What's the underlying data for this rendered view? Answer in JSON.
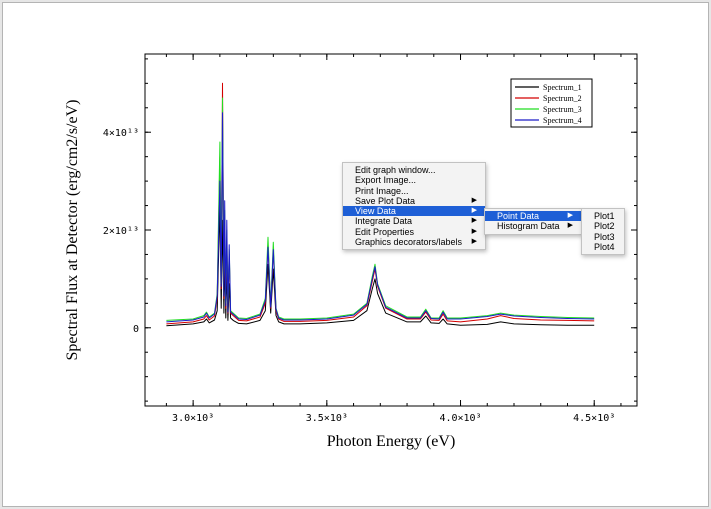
{
  "chart_data": {
    "type": "line",
    "title": "",
    "xlabel": "Photon Energy (eV)",
    "ylabel": "Spectral Flux at Detector (erg/cm2/s/eV)",
    "xlim": [
      2820,
      4660
    ],
    "ylim": [
      -16000000000000.0,
      56000000000000.0
    ],
    "grid": false,
    "legend_position": "top-right",
    "x_ticks": [
      {
        "value": 3000,
        "label": "3.0×10³"
      },
      {
        "value": 3500,
        "label": "3.5×10³"
      },
      {
        "value": 4000,
        "label": "4.0×10³"
      },
      {
        "value": 4500,
        "label": "4.5×10³"
      }
    ],
    "y_ticks": [
      {
        "value": 0,
        "label": "0"
      },
      {
        "value": 20000000000000.0,
        "label": "2×10¹³"
      },
      {
        "value": 40000000000000.0,
        "label": "4×10¹³"
      }
    ],
    "series": [
      {
        "name": "Spectrum_1",
        "color": "#000000",
        "x": [
          2900,
          3000,
          3040,
          3050,
          3060,
          3080,
          3090,
          3100,
          3105,
          3110,
          3115,
          3118,
          3122,
          3126,
          3130,
          3135,
          3140,
          3150,
          3170,
          3200,
          3250,
          3270,
          3280,
          3290,
          3300,
          3310,
          3320,
          3340,
          3400,
          3500,
          3600,
          3650,
          3670,
          3680,
          3690,
          3720,
          3800,
          3850,
          3870,
          3890,
          3920,
          3935,
          3950,
          4000,
          4100,
          4150,
          4200,
          4300,
          4400,
          4500
        ],
        "y": [
          400000000000.0,
          800000000000.0,
          1200000000000.0,
          1800000000000.0,
          1000000000000.0,
          1600000000000.0,
          3500000000000.0,
          25000000000000.0,
          4000000000000.0,
          22000000000000.0,
          3000000000000.0,
          14000000000000.0,
          2000000000000.0,
          12000000000000.0,
          1500000000000.0,
          9000000000000.0,
          2000000000000.0,
          1500000000000.0,
          900000000000.0,
          800000000000.0,
          1500000000000.0,
          3500000000000.0,
          13000000000000.0,
          3000000000000.0,
          12000000000000.0,
          2500000000000.0,
          1200000000000.0,
          800000000000.0,
          800000000000.0,
          1000000000000.0,
          1500000000000.0,
          3500000000000.0,
          8000000000000.0,
          10000000000000.0,
          7000000000000.0,
          3000000000000.0,
          1200000000000.0,
          1200000000000.0,
          2400000000000.0,
          1000000000000.0,
          900000000000.0,
          1800000000000.0,
          800000000000.0,
          500000000000.0,
          700000000000.0,
          1200000000000.0,
          800000000000.0,
          600000000000.0,
          500000000000.0,
          500000000000.0
        ]
      },
      {
        "name": "Spectrum_2",
        "color": "#d40000",
        "x": [
          2900,
          3000,
          3040,
          3050,
          3060,
          3080,
          3090,
          3100,
          3105,
          3110,
          3115,
          3118,
          3122,
          3126,
          3130,
          3135,
          3140,
          3150,
          3170,
          3200,
          3250,
          3270,
          3280,
          3290,
          3300,
          3310,
          3320,
          3340,
          3400,
          3500,
          3600,
          3650,
          3670,
          3680,
          3690,
          3720,
          3800,
          3850,
          3870,
          3890,
          3920,
          3935,
          3950,
          4000,
          4100,
          4150,
          4200,
          4300,
          4400,
          4500
        ],
        "y": [
          800000000000.0,
          1200000000000.0,
          1800000000000.0,
          2500000000000.0,
          1600000000000.0,
          2400000000000.0,
          6000000000000.0,
          35000000000000.0,
          8000000000000.0,
          50000000000000.0,
          6000000000000.0,
          22000000000000.0,
          4000000000000.0,
          18000000000000.0,
          3000000000000.0,
          15000000000000.0,
          3000000000000.0,
          2500000000000.0,
          1500000000000.0,
          1400000000000.0,
          2200000000000.0,
          5000000000000.0,
          17000000000000.0,
          4000000000000.0,
          16000000000000.0,
          3500000000000.0,
          1800000000000.0,
          1300000000000.0,
          1300000000000.0,
          1500000000000.0,
          2200000000000.0,
          4500000000000.0,
          9500000000000.0,
          12000000000000.0,
          8500000000000.0,
          4000000000000.0,
          1800000000000.0,
          1800000000000.0,
          3200000000000.0,
          1600000000000.0,
          1500000000000.0,
          2800000000000.0,
          1400000000000.0,
          1200000000000.0,
          1800000000000.0,
          2500000000000.0,
          1900000000000.0,
          1600000000000.0,
          1500000000000.0,
          1400000000000.0
        ]
      },
      {
        "name": "Spectrum_3",
        "color": "#22dd22",
        "x": [
          2900,
          3000,
          3040,
          3050,
          3060,
          3080,
          3090,
          3100,
          3105,
          3110,
          3115,
          3118,
          3122,
          3126,
          3130,
          3135,
          3140,
          3150,
          3170,
          3200,
          3250,
          3270,
          3280,
          3290,
          3300,
          3310,
          3320,
          3340,
          3400,
          3500,
          3600,
          3650,
          3670,
          3680,
          3690,
          3720,
          3800,
          3850,
          3870,
          3890,
          3920,
          3935,
          3950,
          4000,
          4100,
          4150,
          4200,
          4300,
          4400,
          4500
        ],
        "y": [
          1500000000000.0,
          1800000000000.0,
          2500000000000.0,
          3200000000000.0,
          2200000000000.0,
          3000000000000.0,
          7000000000000.0,
          38000000000000.0,
          9000000000000.0,
          47000000000000.0,
          7000000000000.0,
          24000000000000.0,
          5000000000000.0,
          20000000000000.0,
          3500000000000.0,
          16000000000000.0,
          3500000000000.0,
          3000000000000.0,
          2000000000000.0,
          1900000000000.0,
          2800000000000.0,
          6000000000000.0,
          18500000000000.0,
          4500000000000.0,
          17500000000000.0,
          4000000000000.0,
          2200000000000.0,
          1800000000000.0,
          1800000000000.0,
          2000000000000.0,
          2800000000000.0,
          5000000000000.0,
          10500000000000.0,
          13000000000000.0,
          9000000000000.0,
          4500000000000.0,
          2200000000000.0,
          2200000000000.0,
          3800000000000.0,
          2000000000000.0,
          2000000000000.0,
          3500000000000.0,
          2000000000000.0,
          2000000000000.0,
          2500000000000.0,
          3000000000000.0,
          2600000000000.0,
          2300000000000.0,
          2100000000000.0,
          2000000000000.0
        ]
      },
      {
        "name": "Spectrum_4",
        "color": "#1c1cc8",
        "x": [
          2900,
          3000,
          3040,
          3050,
          3060,
          3080,
          3090,
          3100,
          3105,
          3110,
          3115,
          3118,
          3122,
          3126,
          3130,
          3135,
          3140,
          3150,
          3170,
          3200,
          3250,
          3270,
          3280,
          3290,
          3300,
          3310,
          3320,
          3340,
          3400,
          3500,
          3600,
          3650,
          3670,
          3680,
          3690,
          3720,
          3800,
          3850,
          3870,
          3890,
          3920,
          3935,
          3950,
          4000,
          4100,
          4150,
          4200,
          4300,
          4400,
          4500
        ],
        "y": [
          1200000000000.0,
          1600000000000.0,
          2200000000000.0,
          3000000000000.0,
          2000000000000.0,
          2800000000000.0,
          6500000000000.0,
          30000000000000.0,
          8500000000000.0,
          44000000000000.0,
          6500000000000.0,
          26000000000000.0,
          4500000000000.0,
          22000000000000.0,
          3200000000000.0,
          17000000000000.0,
          3200000000000.0,
          2800000000000.0,
          1800000000000.0,
          1700000000000.0,
          2600000000000.0,
          5500000000000.0,
          16500000000000.0,
          4200000000000.0,
          16000000000000.0,
          3800000000000.0,
          2000000000000.0,
          1600000000000.0,
          1600000000000.0,
          1800000000000.0,
          2600000000000.0,
          4800000000000.0,
          10000000000000.0,
          12500000000000.0,
          8800000000000.0,
          4200000000000.0,
          2000000000000.0,
          2000000000000.0,
          3500000000000.0,
          1900000000000.0,
          1800000000000.0,
          3200000000000.0,
          1800000000000.0,
          1800000000000.0,
          2300000000000.0,
          2800000000000.0,
          2400000000000.0,
          2100000000000.0,
          1900000000000.0,
          1800000000000.0
        ]
      }
    ]
  },
  "context_menu": {
    "items": [
      {
        "label": "Edit graph window...",
        "has_submenu": false,
        "active": false
      },
      {
        "label": "Export Image...",
        "has_submenu": false,
        "active": false
      },
      {
        "label": "Print Image...",
        "has_submenu": false,
        "active": false
      },
      {
        "label": "Save Plot Data",
        "has_submenu": true,
        "active": false
      },
      {
        "label": "View Data",
        "has_submenu": true,
        "active": true
      },
      {
        "label": "Integrate Data",
        "has_submenu": true,
        "active": false
      },
      {
        "label": "Edit Properties",
        "has_submenu": true,
        "active": false
      },
      {
        "label": "Graphics decorators/labels",
        "has_submenu": true,
        "active": false
      }
    ],
    "arrow_glyph": "▶"
  },
  "view_data_submenu": {
    "items": [
      {
        "label": "Point Data",
        "has_submenu": true,
        "active": true
      },
      {
        "label": "Histogram Data",
        "has_submenu": true,
        "active": false
      }
    ]
  },
  "point_data_submenu": {
    "items": [
      {
        "label": "Plot1"
      },
      {
        "label": "Plot2"
      },
      {
        "label": "Plot3"
      },
      {
        "label": "Plot4"
      }
    ]
  }
}
